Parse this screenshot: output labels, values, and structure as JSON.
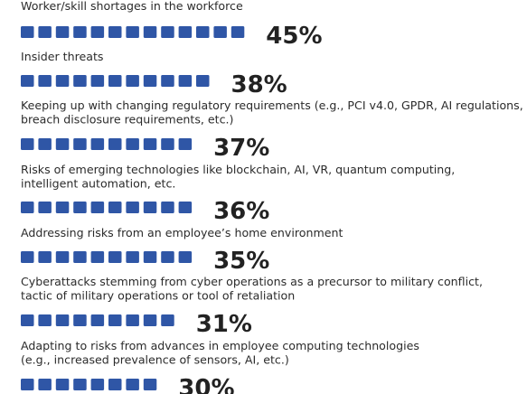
{
  "chart_data": {
    "type": "bar",
    "title": "",
    "xlabel": "",
    "ylabel": "",
    "value_unit": "%",
    "marker_color": "#2f56a6",
    "categories": [
      [
        "Worker/skill shortages in the workforce"
      ],
      [
        "Insider threats"
      ],
      [
        "Keeping up with changing regulatory requirements (e.g., PCI v4.0, GPDR, AI regulations,",
        "breach disclosure requirements, etc.)"
      ],
      [
        "Risks of emerging technologies like blockchain, AI, VR, quantum computing,",
        "intelligent automation, etc."
      ],
      [
        "Addressing risks from an employee’s home environment"
      ],
      [
        "Cyberattacks stemming from cyber operations as a precursor to military conflict,",
        "tactic of military operations or tool of retaliation"
      ],
      [
        "Adapting to risks from advances in employee computing technologies",
        "(e.g., increased prevalence of sensors, AI, etc.)"
      ]
    ],
    "values": [
      45,
      38,
      37,
      36,
      35,
      31,
      30
    ],
    "value_labels": [
      "45%",
      "38%",
      "37%",
      "36%",
      "35%",
      "31%",
      "30%"
    ]
  }
}
